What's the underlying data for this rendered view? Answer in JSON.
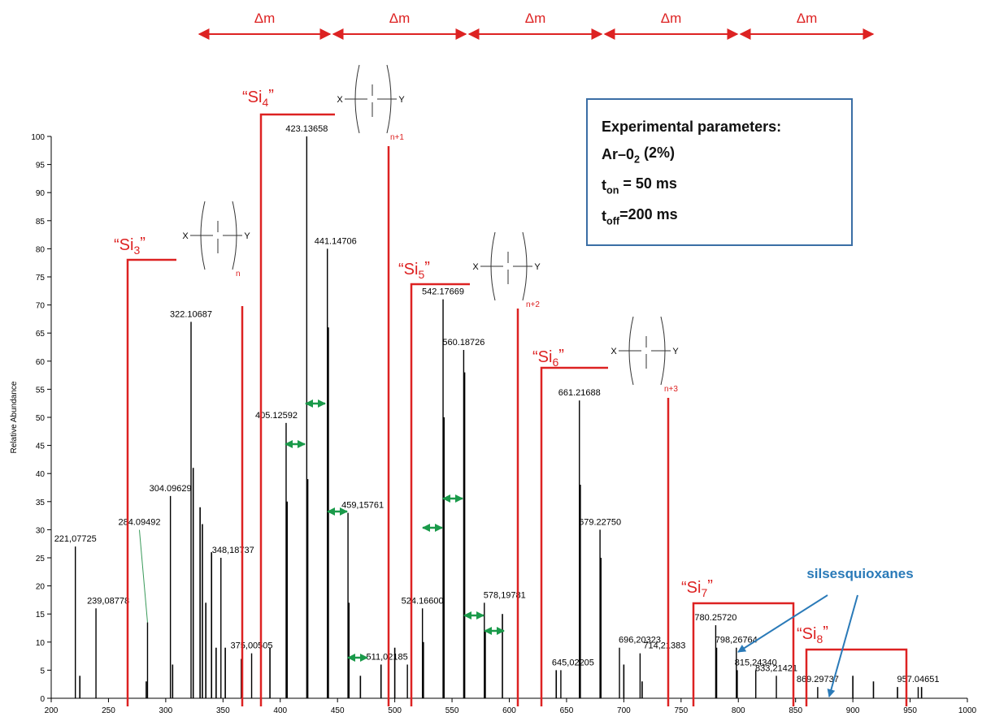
{
  "chart_data": {
    "type": "spectrum",
    "ylabel": "Relative Abundance",
    "xlim": [
      200,
      1000
    ],
    "ylim": [
      0,
      100
    ],
    "xticks": [
      200,
      250,
      300,
      350,
      400,
      450,
      500,
      550,
      600,
      650,
      700,
      750,
      800,
      850,
      900,
      950,
      1000
    ],
    "yticks": [
      0,
      5,
      10,
      15,
      20,
      25,
      30,
      35,
      40,
      45,
      50,
      55,
      60,
      65,
      70,
      75,
      80,
      85,
      90,
      95,
      100
    ],
    "color": "#000000",
    "peaks": {
      "x": [
        221.07725,
        239.08778,
        284.09492,
        304.09629,
        322.10687,
        348.18737,
        375.00505,
        405.12592,
        423.13658,
        441.14706,
        459.15761,
        511.02185,
        524.166,
        542.17669,
        560.18726,
        578.19781,
        645.02205,
        661.21688,
        679.2275,
        696.20323,
        714.21383,
        780.2572,
        798.26764,
        815.2434,
        833.21421,
        869.29737,
        957.04651
      ],
      "values": [
        27,
        16,
        13.5,
        36,
        67,
        25,
        8,
        49,
        100,
        80,
        33,
        6,
        16,
        71,
        62,
        17,
        5,
        53,
        30,
        9,
        8,
        13,
        9,
        5,
        4,
        2,
        2
      ],
      "value_labels": [
        "221,07725",
        "239,08778",
        "284.09492",
        "304.09629",
        "322.10687",
        "348,18737",
        "375,00505",
        "405.12592",
        "423.13658",
        "441.14706",
        "459,15761",
        "511,02185",
        "524.16600",
        "542.17669",
        "560.18726",
        "578,19781",
        "645,02205",
        "661.21688",
        "679.22750",
        "696,20323",
        "714,21383",
        "780.25720",
        "798,26764",
        "815,24340",
        "833,21421",
        "869.29737",
        "957.04651"
      ]
    },
    "minor_peaks": {
      "x": [
        225,
        283,
        306,
        324,
        330,
        332,
        335,
        340,
        344,
        352,
        366,
        391,
        406,
        424,
        442,
        460,
        470,
        488,
        500,
        525,
        543,
        561,
        579,
        594,
        641,
        662,
        680,
        700,
        716,
        781,
        799,
        900,
        918,
        939,
        960
      ],
      "values": [
        4,
        3,
        6,
        41,
        34,
        31,
        17,
        26,
        9,
        9,
        7,
        9,
        35,
        39,
        66,
        17,
        4,
        6,
        9,
        10,
        50,
        58,
        12,
        15,
        5,
        38,
        25,
        6,
        3,
        9,
        5,
        4,
        3,
        2,
        2
      ]
    },
    "delta_m": [
      "Δm",
      "Δm",
      "Δm",
      "Δm",
      "Δm"
    ],
    "groups": [
      {
        "base": "“Si",
        "sub": "3",
        "end": "”"
      },
      {
        "base": "“Si",
        "sub": "4",
        "end": "”"
      },
      {
        "base": "“Si",
        "sub": "5",
        "end": "”"
      },
      {
        "base": "“Si",
        "sub": "6",
        "end": "”"
      },
      {
        "base": "“Si",
        "sub": "7",
        "end": "”"
      },
      {
        "base": "“Si",
        "sub": "8",
        "end": "”"
      }
    ],
    "formula": {
      "left": "X",
      "right": "Y",
      "repeat": [
        "n",
        "n+1",
        "n+2",
        "n+3"
      ]
    },
    "parameters": {
      "title": "Experimental parameters:",
      "gas": {
        "base": "Ar–0",
        "sub": "2",
        "rest": " (2%)"
      },
      "on": {
        "base": "t",
        "sub": "on",
        "rest": " = 50 ms"
      },
      "off": {
        "base": "t",
        "sub": "off",
        "rest": "=200 ms"
      }
    },
    "silsesquioxanes": "silsesquioxanes"
  }
}
